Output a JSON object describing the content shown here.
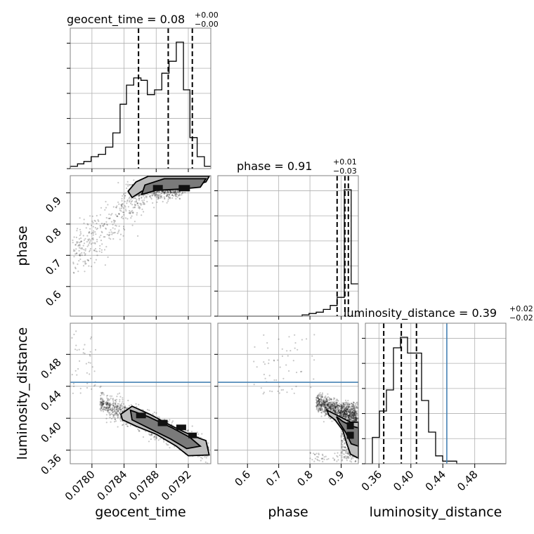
{
  "chart_data": {
    "type": "corner",
    "parameters": [
      "geocent_time",
      "phase",
      "luminosity_distance"
    ],
    "axis_labels": {
      "geocent_time": "geocent_time",
      "phase": "phase",
      "luminosity_distance": "luminosity_distance"
    },
    "ranges": {
      "geocent_time": [
        0.07773,
        0.07948
      ],
      "phase": [
        0.505,
        0.955
      ],
      "luminosity_distance": [
        0.343,
        0.519
      ]
    },
    "ticks": {
      "geocent_time": [
        "0.0780",
        "0.0784",
        "0.0788",
        "0.0792"
      ],
      "phase": [
        "0.6",
        "0.7",
        "0.8",
        "0.9"
      ],
      "luminosity_distance": [
        "0.36",
        "0.40",
        "0.44",
        "0.48"
      ]
    },
    "titles": {
      "geocent_time": {
        "name": "geocent_time",
        "value": "0.08",
        "upper": "+0.00",
        "lower": "−0.00"
      },
      "phase": {
        "name": "phase",
        "value": "0.91",
        "upper": "+0.01",
        "lower": "−0.03"
      },
      "luminosity_distance": {
        "name": "luminosity_distance",
        "value": "0.39",
        "upper": "+0.02",
        "lower": "−0.02"
      }
    },
    "quantiles": {
      "geocent_time": [
        0.07858,
        0.07895,
        0.07925
      ],
      "phase": [
        0.887,
        0.912,
        0.923
      ],
      "luminosity_distance": [
        0.366,
        0.388,
        0.407
      ]
    },
    "truths": {
      "luminosity_distance": 0.445
    },
    "histograms": {
      "geocent_time": {
        "bin_edges": [
          0.07773,
          0.07782,
          0.0779,
          0.07799,
          0.07808,
          0.07817,
          0.07826,
          0.07835,
          0.07843,
          0.07852,
          0.07861,
          0.07869,
          0.07878,
          0.07887,
          0.07896,
          0.07905,
          0.07914,
          0.07922,
          0.07931,
          0.0794,
          0.07948
        ],
        "counts": [
          1,
          2,
          3,
          5,
          6,
          9,
          15,
          27,
          35,
          38,
          37,
          31,
          33,
          40,
          45,
          53,
          33,
          13,
          5,
          1
        ]
      },
      "phase": {
        "bin_edges": [
          0.505,
          0.527,
          0.55,
          0.572,
          0.595,
          0.618,
          0.64,
          0.662,
          0.685,
          0.708,
          0.73,
          0.753,
          0.775,
          0.797,
          0.82,
          0.843,
          0.865,
          0.887,
          0.91,
          0.932,
          0.955
        ],
        "counts": [
          0,
          0,
          0,
          0,
          0,
          0,
          0,
          0,
          0,
          0,
          0,
          0,
          0.5,
          1,
          1.5,
          2.5,
          4,
          7,
          47,
          12
        ]
      },
      "luminosity_distance": {
        "bin_edges": [
          0.343,
          0.3518,
          0.3606,
          0.3694,
          0.3782,
          0.387,
          0.3958,
          0.4046,
          0.4134,
          0.4222,
          0.431,
          0.4398,
          0.4486,
          0.4574,
          0.4662,
          0.475,
          0.4838,
          0.4926,
          0.5014,
          0.5102,
          0.519
        ],
        "counts": [
          0,
          10,
          20,
          28,
          44,
          48,
          42,
          42,
          24,
          12,
          3,
          1,
          1,
          0,
          0,
          0,
          0,
          0,
          0,
          0
        ]
      }
    },
    "panel_titles_text": [
      "geocent_time = 0.08",
      "phase = 0.91",
      "luminosity_distance = 0.39"
    ]
  }
}
